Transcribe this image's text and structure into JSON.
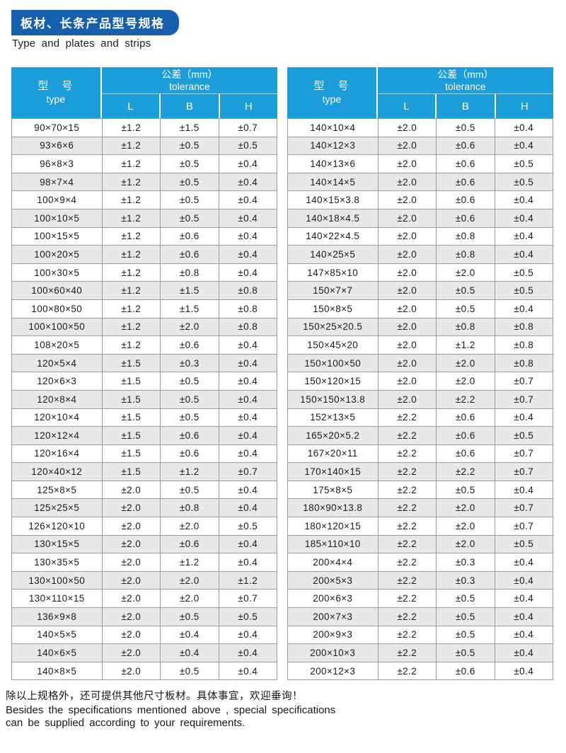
{
  "header": {
    "title_cn": "板材、长条产品型号规格",
    "title_en": "Type and plates and strips"
  },
  "colors": {
    "banner_blue": "#1460AE",
    "header_cyan": "#1B9DD9",
    "row_alt_gray": "#E8E8E8",
    "cell_border": "#9A9A9A"
  },
  "table_header": {
    "type_cn": "型　号",
    "type_en": "type",
    "tolerance_cn": "公差（mm）",
    "tolerance_en": "tolerance",
    "col_l": "L",
    "col_b": "B",
    "col_h": "H"
  },
  "tables": {
    "left": {
      "rows": [
        [
          "90×70×15",
          "±1.2",
          "±1.5",
          "±0.7"
        ],
        [
          "93×6×6",
          "±1.2",
          "±0.5",
          "±0.5"
        ],
        [
          "96×8×3",
          "±1.2",
          "±0.5",
          "±0.4"
        ],
        [
          "98×7×4",
          "±1.2",
          "±0.5",
          "±0.4"
        ],
        [
          "100×9×4",
          "±1.2",
          "±0.5",
          "±0.4"
        ],
        [
          "100×10×5",
          "±1.2",
          "±0.5",
          "±0.4"
        ],
        [
          "100×15×5",
          "±1.2",
          "±0.6",
          "±0.4"
        ],
        [
          "100×20×5",
          "±1.2",
          "±0.6",
          "±0.4"
        ],
        [
          "100×30×5",
          "±1.2",
          "±0.8",
          "±0.4"
        ],
        [
          "100×60×40",
          "±1.2",
          "±1.5",
          "±0.8"
        ],
        [
          "100×80×50",
          "±1.2",
          "±1.5",
          "±0.8"
        ],
        [
          "100×100×50",
          "±1.2",
          "±2.0",
          "±0.8"
        ],
        [
          "108×20×5",
          "±1.2",
          "±0.6",
          "±0.4"
        ],
        [
          "120×5×4",
          "±1.5",
          "±0.3",
          "±0.4"
        ],
        [
          "120×6×3",
          "±1.5",
          "±0.5",
          "±0.4"
        ],
        [
          "120×8×4",
          "±1.5",
          "±0.5",
          "±0.4"
        ],
        [
          "120×10×4",
          "±1.5",
          "±0.5",
          "±0.4"
        ],
        [
          "120×12×4",
          "±1.5",
          "±0.6",
          "±0.4"
        ],
        [
          "120×16×4",
          "±1.5",
          "±0.6",
          "±0.4"
        ],
        [
          "120×40×12",
          "±1.5",
          "±1.2",
          "±0.7"
        ],
        [
          "125×8×5",
          "±2.0",
          "±0.5",
          "±0.4"
        ],
        [
          "125×25×5",
          "±2.0",
          "±0.8",
          "±0.4"
        ],
        [
          "126×120×10",
          "±2.0",
          "±2.0",
          "±0.5"
        ],
        [
          "130×15×5",
          "±2.0",
          "±0.6",
          "±0.4"
        ],
        [
          "130×35×5",
          "±2.0",
          "±1.2",
          "±0.4"
        ],
        [
          "130×100×50",
          "±2.0",
          "±2.0",
          "±1.2"
        ],
        [
          "130×110×15",
          "±2.0",
          "±2.0",
          "±0.7"
        ],
        [
          "136×9×8",
          "±2.0",
          "±0.5",
          "±0.5"
        ],
        [
          "140×5×5",
          "±2.0",
          "±0.4",
          "±0.4"
        ],
        [
          "140×6×5",
          "±2.0",
          "±0.4",
          "±0.4"
        ],
        [
          "140×8×5",
          "±2.0",
          "±0.5",
          "±0.4"
        ]
      ]
    },
    "right": {
      "rows": [
        [
          "140×10×4",
          "±2.0",
          "±0.5",
          "±0.4"
        ],
        [
          "140×12×3",
          "±2.0",
          "±0.6",
          "±0.4"
        ],
        [
          "140×13×6",
          "±2.0",
          "±0.6",
          "±0.5"
        ],
        [
          "140×14×5",
          "±2.0",
          "±0.6",
          "±0.5"
        ],
        [
          "140×15×3.8",
          "±2.0",
          "±0.6",
          "±0.4"
        ],
        [
          "140×18×4.5",
          "±2.0",
          "±0.6",
          "±0.4"
        ],
        [
          "140×22×4.5",
          "±2.0",
          "±0.8",
          "±0.4"
        ],
        [
          "140×25×5",
          "±2.0",
          "±0.8",
          "±0.4"
        ],
        [
          "147×85×10",
          "±2.0",
          "±2.0",
          "±0.5"
        ],
        [
          "150×7×7",
          "±2.0",
          "±0.5",
          "±0.5"
        ],
        [
          "150×8×5",
          "±2.0",
          "±0.5",
          "±0.4"
        ],
        [
          "150×25×20.5",
          "±2.0",
          "±0.8",
          "±0.8"
        ],
        [
          "150×45×20",
          "±2.0",
          "±1.2",
          "±0.8"
        ],
        [
          "150×100×50",
          "±2.0",
          "±2.0",
          "±0.8"
        ],
        [
          "150×120×15",
          "±2.0",
          "±2.0",
          "±0.7"
        ],
        [
          "150×150×13.8",
          "±2.0",
          "±2.2",
          "±0.7"
        ],
        [
          "152×13×5",
          "±2.2",
          "±0.6",
          "±0.4"
        ],
        [
          "165×20×5.2",
          "±2.2",
          "±0.6",
          "±0.5"
        ],
        [
          "167×20×11",
          "±2.2",
          "±0.6",
          "±0.7"
        ],
        [
          "170×140×15",
          "±2.2",
          "±2.2",
          "±0.7"
        ],
        [
          "175×8×5",
          "±2.2",
          "±0.5",
          "±0.4"
        ],
        [
          "180×90×13.8",
          "±2.2",
          "±2.0",
          "±0.7"
        ],
        [
          "180×120×15",
          "±2.2",
          "±2.0",
          "±0.7"
        ],
        [
          "185×110×10",
          "±2.2",
          "±2.0",
          "±0.5"
        ],
        [
          "200×4×4",
          "±2.2",
          "±0.3",
          "±0.4"
        ],
        [
          "200×5×3",
          "±2.2",
          "±0.3",
          "±0.4"
        ],
        [
          "200×6×3",
          "±2.2",
          "±0.5",
          "±0.4"
        ],
        [
          "200×7×3",
          "±2.2",
          "±0.5",
          "±0.4"
        ],
        [
          "200×9×3",
          "±2.2",
          "±0.5",
          "±0.4"
        ],
        [
          "200×10×3",
          "±2.2",
          "±0.5",
          "±0.4"
        ],
        [
          "200×12×3",
          "±2.2",
          "±0.6",
          "±0.4"
        ]
      ]
    }
  },
  "footer": {
    "cn": "除以上规格外，还可提供其他尺寸板材。具体事宜，欢迎垂询！",
    "en_line1": "Besides the specifications mentioned above , special specifications",
    "en_line2": "can be supplied according to your requirements."
  }
}
